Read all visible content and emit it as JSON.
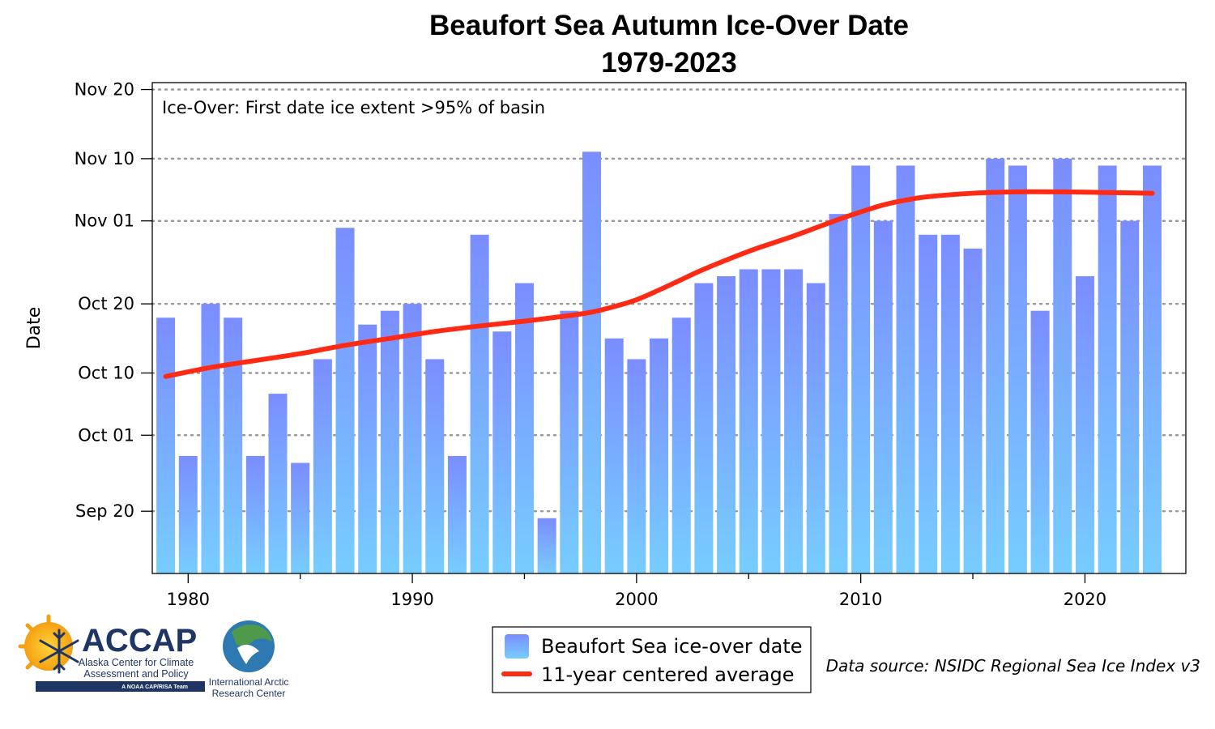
{
  "chart_data": {
    "type": "bar",
    "title": "Beaufort Sea Autumn Ice-Over Date",
    "subtitle": "1979-2023",
    "ylabel": "Date",
    "annotation": "Ice-Over: First date ice extent >95% of basin",
    "x": [
      1979,
      1980,
      1981,
      1982,
      1983,
      1984,
      1985,
      1986,
      1987,
      1988,
      1989,
      1990,
      1991,
      1992,
      1993,
      1994,
      1995,
      1996,
      1997,
      1998,
      1999,
      2000,
      2001,
      2002,
      2003,
      2004,
      2005,
      2006,
      2007,
      2008,
      2009,
      2010,
      2011,
      2012,
      2013,
      2014,
      2015,
      2016,
      2017,
      2018,
      2019,
      2020,
      2021,
      2022,
      2023
    ],
    "x_ticks": [
      "1980",
      "1990",
      "2000",
      "2010",
      "2020"
    ],
    "y_ticks": [
      "Nov 20",
      "Nov 10",
      "Nov 01",
      "Oct 20",
      "Oct 10",
      "Oct 01",
      "Sep 20"
    ],
    "y_tick_day_of_year": [
      324,
      314,
      305,
      293,
      283,
      274,
      263
    ],
    "ylim_day_of_year": [
      254,
      325
    ],
    "series": [
      {
        "name": "Beaufort Sea ice-over date",
        "values_day_of_year": [
          291,
          271,
          293,
          291,
          271,
          280,
          270,
          285,
          304,
          290,
          292,
          293,
          285,
          271,
          303,
          289,
          296,
          262,
          292,
          315,
          288,
          285,
          288,
          291,
          296,
          297,
          298,
          298,
          298,
          296,
          306,
          313,
          305,
          313,
          303,
          303,
          301,
          314,
          313,
          292,
          314,
          297,
          313,
          305,
          313
        ]
      },
      {
        "name": "11-year centered average",
        "type": "line",
        "x": [
          1979,
          1981,
          1983,
          1985,
          1987,
          1989,
          1991,
          1993,
          1995,
          1997,
          1998,
          1999,
          2000,
          2001,
          2002,
          2003,
          2005,
          2007,
          2009,
          2010,
          2011,
          2012,
          2013,
          2015,
          2017,
          2019,
          2021,
          2023
        ],
        "values_day_of_year": [
          282.5,
          283.8,
          284.8,
          285.8,
          287,
          288,
          289,
          289.8,
          290.5,
          291.3,
          291.8,
          292.6,
          293.6,
          295,
          296.5,
          298,
          300.6,
          302.8,
          305.2,
          306.3,
          307.3,
          308,
          308.5,
          309,
          309.2,
          309.2,
          309.1,
          309
        ]
      }
    ],
    "legend": {
      "placement": "bottom-center",
      "entries": [
        "Beaufort Sea ice-over date",
        "11-year centered average"
      ]
    },
    "grid": "horizontal-dotted",
    "source": "Data source: NSIDC Regional Sea Ice Index v3",
    "colors": {
      "bar_top": "#7b8dff",
      "bar_bottom": "#77cdff",
      "average_line": "#ff2a14",
      "grid": "#9a9a9a"
    }
  },
  "logos": {
    "accap": {
      "name": "ACCAP",
      "line1": "Alaska Center for Climate",
      "line2": "Assessment and Policy",
      "tag": "A NOAA CAP/RISA Team"
    },
    "iarc": {
      "line1": "International Arctic",
      "line2": "Research Center"
    }
  }
}
